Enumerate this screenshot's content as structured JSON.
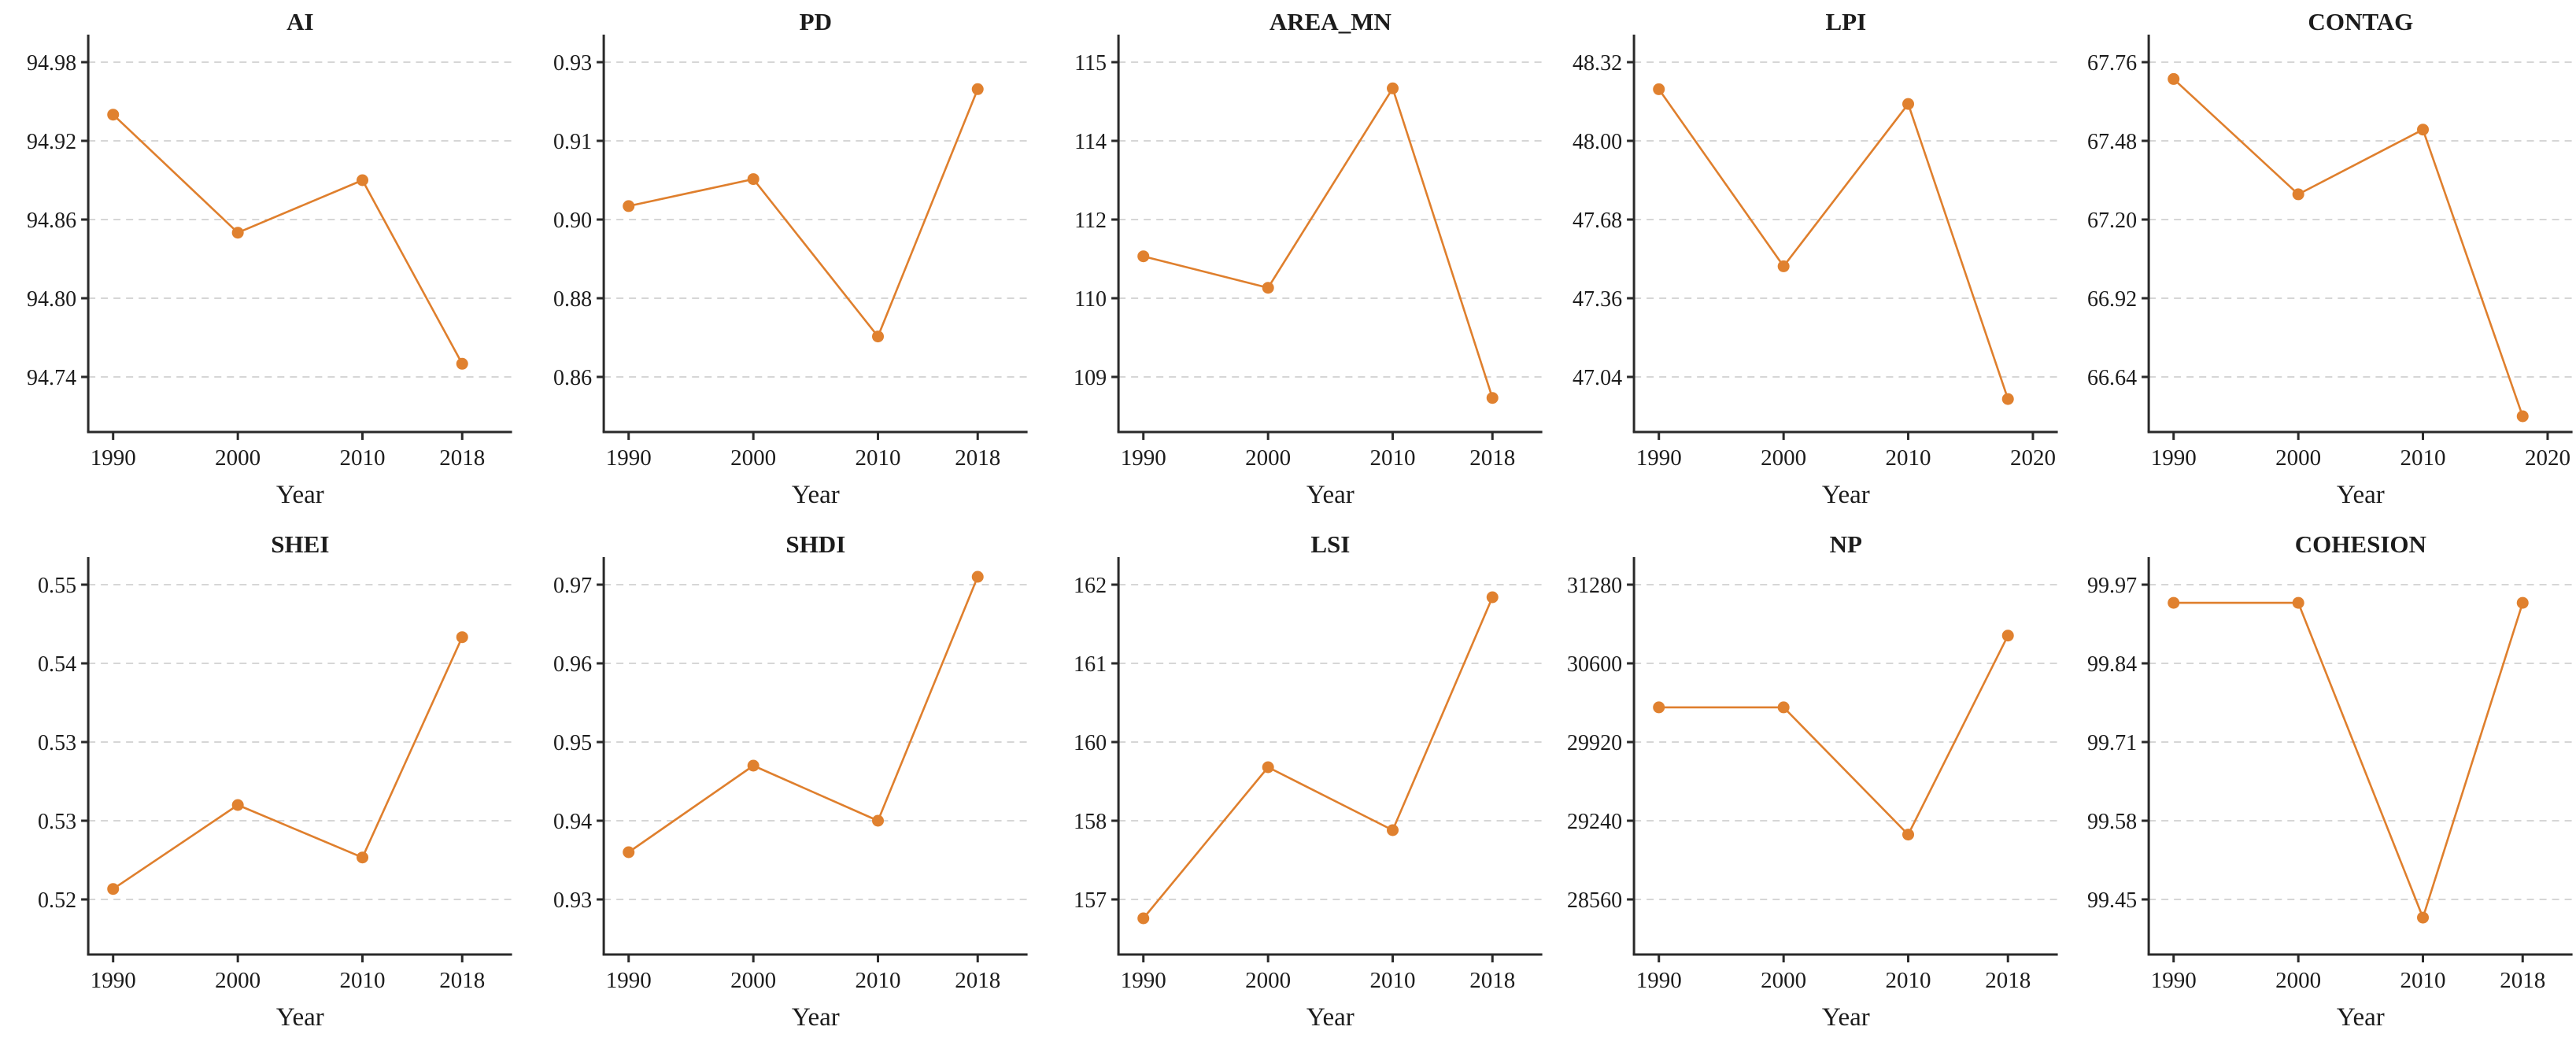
{
  "figure_title": "",
  "colors": {
    "line": "#df7f2d",
    "marker": "#e0812f",
    "grid": "#c9c9c9",
    "spine": "#2a2a2a",
    "text": "#1c1c1c"
  },
  "chart_data": [
    {
      "type": "line",
      "title": "AI",
      "xlabel": "Year",
      "x": [
        1990,
        2000,
        2010,
        2018
      ],
      "values": [
        94.94,
        94.85,
        94.89,
        94.75
      ],
      "x_ticks": [
        {
          "label": "1990",
          "value": 1990
        },
        {
          "label": "2000",
          "value": 2000
        },
        {
          "label": "2010",
          "value": 2010
        },
        {
          "label": "2018",
          "value": 2018
        }
      ],
      "y_ticks": [
        {
          "label": "94.98",
          "value": 94.98
        },
        {
          "label": "94.92",
          "value": 94.92
        },
        {
          "label": "94.86",
          "value": 94.86
        },
        {
          "label": "94.80",
          "value": 94.8
        },
        {
          "label": "94.74",
          "value": 94.74
        }
      ],
      "xlim": [
        1988,
        2022
      ],
      "grid": true
    },
    {
      "type": "line",
      "title": "PD",
      "xlabel": "Year",
      "x": [
        1990,
        2000,
        2010,
        2018
      ],
      "values": [
        0.898,
        0.904,
        0.869,
        0.924
      ],
      "x_ticks": [
        {
          "label": "1990",
          "value": 1990
        },
        {
          "label": "2000",
          "value": 2000
        },
        {
          "label": "2010",
          "value": 2010
        },
        {
          "label": "2018",
          "value": 2018
        }
      ],
      "y_ticks": [
        {
          "label": "0.93",
          "value": 0.93
        },
        {
          "label": "0.91",
          "value": 0.9125
        },
        {
          "label": "0.90",
          "value": 0.895
        },
        {
          "label": "0.88",
          "value": 0.8775
        },
        {
          "label": "0.86",
          "value": 0.86
        }
      ],
      "xlim": [
        1988,
        2022
      ],
      "grid": true
    },
    {
      "type": "line",
      "title": "AREA_MN",
      "xlabel": "Year",
      "x": [
        1990,
        2000,
        2010,
        2018
      ],
      "values": [
        111.3,
        110.7,
        114.5,
        108.6
      ],
      "x_ticks": [
        {
          "label": "1990",
          "value": 1990
        },
        {
          "label": "2000",
          "value": 2000
        },
        {
          "label": "2010",
          "value": 2010
        },
        {
          "label": "2018",
          "value": 2018
        }
      ],
      "y_ticks": [
        {
          "label": "115",
          "value": 115
        },
        {
          "label": "114",
          "value": 113.5
        },
        {
          "label": "112",
          "value": 112
        },
        {
          "label": "110",
          "value": 110.5
        },
        {
          "label": "109",
          "value": 109
        }
      ],
      "xlim": [
        1988,
        2022
      ],
      "grid": true
    },
    {
      "type": "line",
      "title": "LPI",
      "xlabel": "Year",
      "x": [
        1990,
        2000,
        2010,
        2018
      ],
      "values": [
        48.21,
        47.49,
        48.15,
        46.95
      ],
      "x_ticks": [
        {
          "label": "1990",
          "value": 1990
        },
        {
          "label": "2000",
          "value": 2000
        },
        {
          "label": "2010",
          "value": 2010
        },
        {
          "label": "2020",
          "value": 2020
        }
      ],
      "y_ticks": [
        {
          "label": "48.32",
          "value": 48.32
        },
        {
          "label": "48.00",
          "value": 48.0
        },
        {
          "label": "47.68",
          "value": 47.68
        },
        {
          "label": "47.36",
          "value": 47.36
        },
        {
          "label": "47.04",
          "value": 47.04
        }
      ],
      "xlim": [
        1988,
        2022
      ],
      "grid": true
    },
    {
      "type": "line",
      "title": "CONTAG",
      "xlabel": "Year",
      "x": [
        1990,
        2000,
        2010,
        2018
      ],
      "values": [
        67.7,
        67.29,
        67.52,
        66.5
      ],
      "x_ticks": [
        {
          "label": "1990",
          "value": 1990
        },
        {
          "label": "2000",
          "value": 2000
        },
        {
          "label": "2010",
          "value": 2010
        },
        {
          "label": "2020",
          "value": 2020
        }
      ],
      "y_ticks": [
        {
          "label": "67.76",
          "value": 67.76
        },
        {
          "label": "67.48",
          "value": 67.48
        },
        {
          "label": "67.20",
          "value": 67.2
        },
        {
          "label": "66.92",
          "value": 66.92
        },
        {
          "label": "66.64",
          "value": 66.64
        }
      ],
      "xlim": [
        1988,
        2022
      ],
      "grid": true
    },
    {
      "type": "line",
      "title": "SHEI",
      "xlabel": "Year",
      "x": [
        1990,
        2000,
        2010,
        2018
      ],
      "values": [
        0.521,
        0.529,
        0.524,
        0.545
      ],
      "x_ticks": [
        {
          "label": "1990",
          "value": 1990
        },
        {
          "label": "2000",
          "value": 2000
        },
        {
          "label": "2010",
          "value": 2010
        },
        {
          "label": "2018",
          "value": 2018
        }
      ],
      "y_ticks": [
        {
          "label": "0.55",
          "value": 0.55
        },
        {
          "label": "0.54",
          "value": 0.5425
        },
        {
          "label": "0.53",
          "value": 0.535
        },
        {
          "label": "0.53",
          "value": 0.5275
        },
        {
          "label": "0.52",
          "value": 0.52
        }
      ],
      "xlim": [
        1988,
        2022
      ],
      "grid": true
    },
    {
      "type": "line",
      "title": "SHDI",
      "xlabel": "Year",
      "x": [
        1990,
        2000,
        2010,
        2018
      ],
      "values": [
        0.936,
        0.947,
        0.94,
        0.971
      ],
      "x_ticks": [
        {
          "label": "1990",
          "value": 1990
        },
        {
          "label": "2000",
          "value": 2000
        },
        {
          "label": "2010",
          "value": 2010
        },
        {
          "label": "2018",
          "value": 2018
        }
      ],
      "y_ticks": [
        {
          "label": "0.97",
          "value": 0.97
        },
        {
          "label": "0.96",
          "value": 0.96
        },
        {
          "label": "0.95",
          "value": 0.95
        },
        {
          "label": "0.94",
          "value": 0.94
        },
        {
          "label": "0.93",
          "value": 0.93
        }
      ],
      "xlim": [
        1988,
        2022
      ],
      "grid": true
    },
    {
      "type": "line",
      "title": "LSI",
      "xlabel": "Year",
      "x": [
        1990,
        2000,
        2010,
        2018
      ],
      "values": [
        156.7,
        159.1,
        158.1,
        161.8
      ],
      "x_ticks": [
        {
          "label": "1990",
          "value": 1990
        },
        {
          "label": "2000",
          "value": 2000
        },
        {
          "label": "2010",
          "value": 2010
        },
        {
          "label": "2018",
          "value": 2018
        }
      ],
      "y_ticks": [
        {
          "label": "162",
          "value": 162
        },
        {
          "label": "161",
          "value": 160.75
        },
        {
          "label": "160",
          "value": 159.5
        },
        {
          "label": "158",
          "value": 158.25
        },
        {
          "label": "157",
          "value": 157
        }
      ],
      "xlim": [
        1988,
        2022
      ],
      "grid": true
    },
    {
      "type": "line",
      "title": "NP",
      "xlabel": "Year",
      "x": [
        1990,
        2000,
        2010,
        2018
      ],
      "values": [
        30220,
        30220,
        29120,
        30840
      ],
      "x_ticks": [
        {
          "label": "1990",
          "value": 1990
        },
        {
          "label": "2000",
          "value": 2000
        },
        {
          "label": "2010",
          "value": 2010
        },
        {
          "label": "2018",
          "value": 2018
        }
      ],
      "y_ticks": [
        {
          "label": "31280",
          "value": 31280
        },
        {
          "label": "30600",
          "value": 30600
        },
        {
          "label": "29920",
          "value": 29920
        },
        {
          "label": "29240",
          "value": 29240
        },
        {
          "label": "28560",
          "value": 28560
        }
      ],
      "xlim": [
        1988,
        2022
      ],
      "grid": true
    },
    {
      "type": "line",
      "title": "COHESION",
      "xlabel": "Year",
      "x": [
        1990,
        2000,
        2010,
        2018
      ],
      "values": [
        99.94,
        99.94,
        99.42,
        99.94
      ],
      "x_ticks": [
        {
          "label": "1990",
          "value": 1990
        },
        {
          "label": "2000",
          "value": 2000
        },
        {
          "label": "2010",
          "value": 2010
        },
        {
          "label": "2018",
          "value": 2018
        }
      ],
      "y_ticks": [
        {
          "label": "99.97",
          "value": 99.97
        },
        {
          "label": "99.84",
          "value": 99.84
        },
        {
          "label": "99.71",
          "value": 99.71
        },
        {
          "label": "99.58",
          "value": 99.58
        },
        {
          "label": "99.45",
          "value": 99.45
        }
      ],
      "xlim": [
        1988,
        2022
      ],
      "grid": true
    }
  ]
}
